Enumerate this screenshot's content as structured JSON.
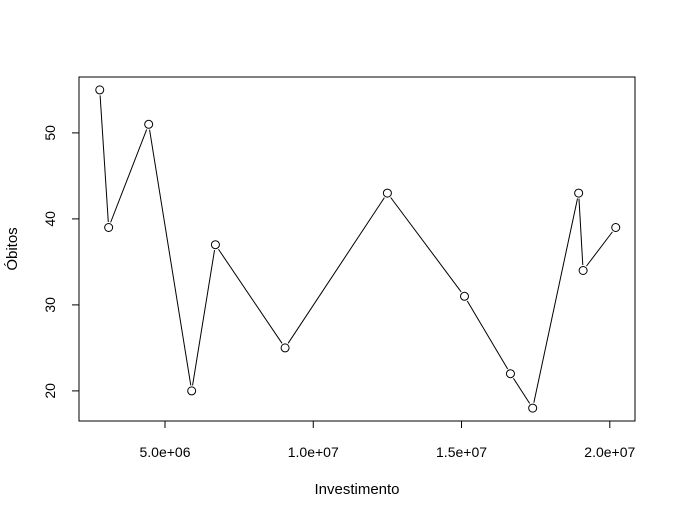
{
  "chart_data": {
    "type": "line",
    "title": "",
    "xlabel": "Investimento",
    "ylabel": "Óbitos",
    "x_ticks": [
      5000000,
      10000000,
      15000000,
      20000000
    ],
    "x_tick_labels": [
      "5.0e+06",
      "1.0e+07",
      "1.5e+07",
      "2.0e+07"
    ],
    "y_ticks": [
      20,
      30,
      40,
      50
    ],
    "y_tick_labels": [
      "20",
      "30",
      "40",
      "50"
    ],
    "xlim": [
      2100000,
      20850000
    ],
    "ylim": [
      16.5,
      56.5
    ],
    "grid": false,
    "legend": "none",
    "series": [
      {
        "points": [
          {
            "x": 2800000,
            "y": 55
          },
          {
            "x": 3100000,
            "y": 39
          },
          {
            "x": 4450000,
            "y": 51
          },
          {
            "x": 5900000,
            "y": 20
          },
          {
            "x": 6700000,
            "y": 37
          },
          {
            "x": 9050000,
            "y": 25
          },
          {
            "x": 12500000,
            "y": 43
          },
          {
            "x": 15100000,
            "y": 31
          },
          {
            "x": 16650000,
            "y": 22
          },
          {
            "x": 17400000,
            "y": 18
          },
          {
            "x": 18950000,
            "y": 43
          },
          {
            "x": 19100000,
            "y": 34
          },
          {
            "x": 20200000,
            "y": 39
          }
        ]
      }
    ],
    "colors": {
      "line": "#000000",
      "marker_fill": "#ffffff",
      "marker_stroke": "#000000",
      "axis": "#000000"
    }
  }
}
